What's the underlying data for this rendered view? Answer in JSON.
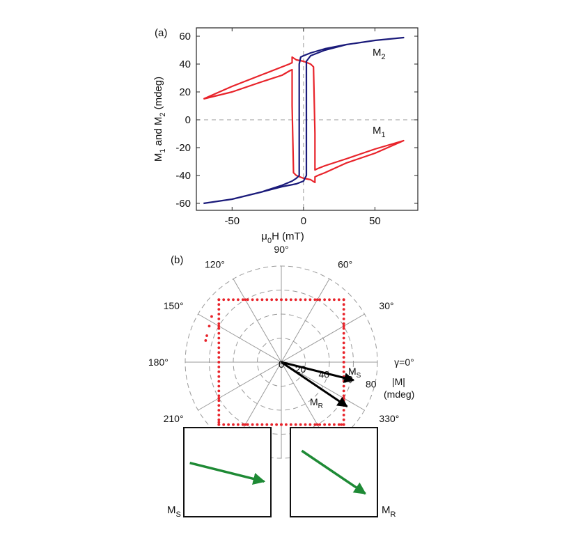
{
  "chart_data": [
    {
      "panel_label": "(a)",
      "type": "line",
      "xlabel": "μ0H (mT)",
      "ylabel": "M1 and M2 (mdeg)",
      "xlim": [
        -75,
        80
      ],
      "ylim": [
        -65,
        66
      ],
      "xticks": [
        -50,
        0,
        50
      ],
      "yticks": [
        -60,
        -40,
        -20,
        0,
        20,
        40,
        60
      ],
      "grid": false,
      "annotations": [
        "M2",
        "M1"
      ],
      "series": [
        {
          "name": "M1",
          "color": "#e8232a",
          "x": [
            -70,
            -50,
            -30,
            -15,
            -10,
            -8,
            -8,
            -7,
            -5,
            0,
            5,
            8,
            8,
            8,
            10,
            15,
            30,
            50,
            70,
            50,
            30,
            15,
            10,
            8,
            8,
            7,
            5,
            0,
            -5,
            -8,
            -8,
            -8,
            -10,
            -15,
            -30,
            -50,
            -70
          ],
          "y": [
            15,
            20,
            27,
            32,
            35,
            36,
            10,
            -38,
            -40,
            -42,
            -43,
            -45,
            -45,
            -41,
            -40,
            -38,
            -31,
            -24,
            -15,
            -21,
            -28,
            -33,
            -35,
            -36,
            -10,
            38,
            40,
            42,
            43,
            45,
            45,
            41,
            40,
            38,
            32,
            24,
            15
          ]
        },
        {
          "name": "M2",
          "color": "#1a1a7a",
          "x": [
            -70,
            -50,
            -30,
            -15,
            -8,
            -5,
            -3,
            -3,
            -2,
            0,
            5,
            15,
            30,
            50,
            70,
            50,
            30,
            15,
            5,
            2,
            2,
            1,
            0,
            -5,
            -15,
            -30,
            -50,
            -70
          ],
          "y": [
            -60,
            -57,
            -52,
            -47,
            -44,
            -42,
            -40,
            40,
            45,
            46,
            48,
            51,
            54,
            57,
            59,
            57,
            54,
            50,
            46,
            42,
            -40,
            -42,
            -44,
            -46,
            -48,
            -52,
            -57,
            -60
          ]
        }
      ]
    },
    {
      "panel_label": "(b)",
      "type": "scatter",
      "coordinate_system": "polar",
      "radial_label": "|M| (mdeg)",
      "radial_ticks": [
        20,
        40,
        60,
        80
      ],
      "rlim": [
        0,
        80
      ],
      "angle_ticks": [
        0,
        30,
        60,
        90,
        120,
        150,
        180,
        210,
        330
      ],
      "angle_tick_labels": [
        "γ=0°",
        "30°",
        "60°",
        "90°",
        "120°",
        "150°",
        "180°",
        "210°",
        "330°"
      ],
      "origin_label": "0",
      "series": [
        {
          "name": "M",
          "color": "#e8232a",
          "description_points": "square-like locus",
          "points_xy": [
            [
              52,
              52
            ],
            [
              30,
              52
            ],
            [
              0,
              52
            ],
            [
              -30,
              52
            ],
            [
              -52,
              52
            ],
            [
              -52,
              30
            ],
            [
              -52,
              0
            ],
            [
              -52,
              -30
            ],
            [
              -52,
              -50
            ],
            [
              -30,
              -52
            ],
            [
              0,
              -52
            ],
            [
              30,
              -52
            ],
            [
              50,
              -52
            ],
            [
              52,
              -30
            ],
            [
              52,
              0
            ],
            [
              52,
              30
            ],
            [
              -58,
              38
            ],
            [
              -60,
              30
            ],
            [
              -62,
              22
            ],
            [
              -63,
              18
            ]
          ]
        }
      ],
      "vectors": [
        {
          "label": "MS",
          "angle_deg": -14,
          "magnitude": 62
        },
        {
          "label": "MR",
          "angle_deg": -34,
          "magnitude": 66
        }
      ]
    }
  ],
  "insets": [
    {
      "label": "MS",
      "arrow_color": "#1e8a35",
      "angle_deg": -14
    },
    {
      "label": "MR",
      "arrow_color": "#1e8a35",
      "angle_deg": -34
    }
  ]
}
